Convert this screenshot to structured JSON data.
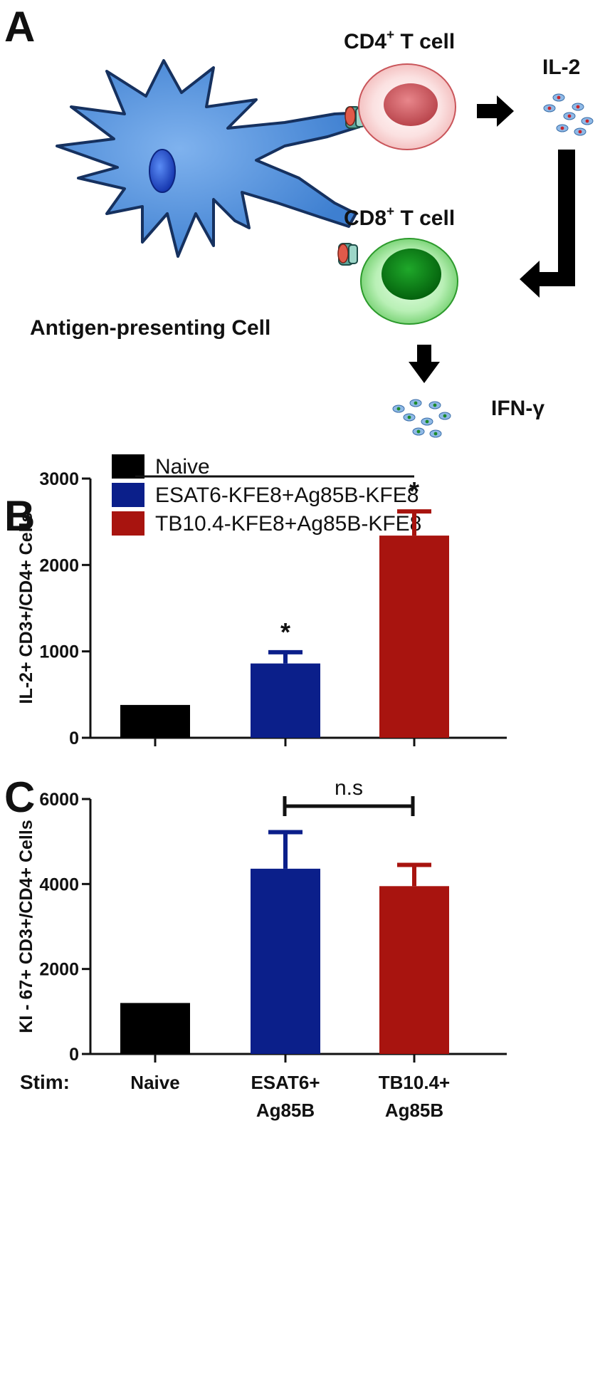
{
  "panel_a": {
    "label": "A",
    "cd4_label": "CD4",
    "cd4_sup": "+",
    "cd4_rest": " T cell",
    "cd8_label": "CD8",
    "cd8_sup": "+",
    "cd8_rest": " T cell",
    "il2_label": "IL-2",
    "ifn_label": "IFN-γ",
    "apc_label": "Antigen-presenting Cell"
  },
  "legend": [
    {
      "label": "Naive",
      "color": "#000000"
    },
    {
      "label": "ESAT6-KFE8+Ag85B-KFE8",
      "color": "#0b1f8a"
    },
    {
      "label": "TB10.4-KFE8+Ag85B-KFE8",
      "color": "#a8140f"
    }
  ],
  "stim_label": "Stim:",
  "x_labels": [
    {
      "line1": "Naive",
      "line2": ""
    },
    {
      "line1": "ESAT6+",
      "line2": "Ag85B"
    },
    {
      "line1": "TB10.4+",
      "line2": "Ag85B"
    }
  ],
  "chart_data": [
    {
      "panel": "B",
      "type": "bar",
      "ylabel": "IL-2+ CD3+/CD4+ Cells",
      "ylim": [
        0,
        3000
      ],
      "yticks": [
        0,
        1000,
        2000,
        3000
      ],
      "categories": [
        "Naive",
        "ESAT6+ Ag85B",
        "TB10.4+ Ag85B"
      ],
      "values": [
        380,
        860,
        2340
      ],
      "errors": [
        0,
        130,
        280
      ],
      "colors": [
        "#000000",
        "#0b1f8a",
        "#a8140f"
      ],
      "annotations": [
        "",
        "*",
        "*"
      ],
      "bracket_label": ""
    },
    {
      "panel": "C",
      "type": "bar",
      "ylabel": "KI - 67+ CD3+/CD4+ Cells",
      "ylim": [
        0,
        6000
      ],
      "yticks": [
        0,
        2000,
        4000,
        6000
      ],
      "categories": [
        "Naive",
        "ESAT6+ Ag85B",
        "TB10.4+ Ag85B"
      ],
      "values": [
        1200,
        4360,
        3950
      ],
      "errors": [
        0,
        860,
        500
      ],
      "colors": [
        "#000000",
        "#0b1f8a",
        "#a8140f"
      ],
      "annotations": [
        "",
        "",
        ""
      ],
      "bracket_label": "n.s"
    }
  ]
}
